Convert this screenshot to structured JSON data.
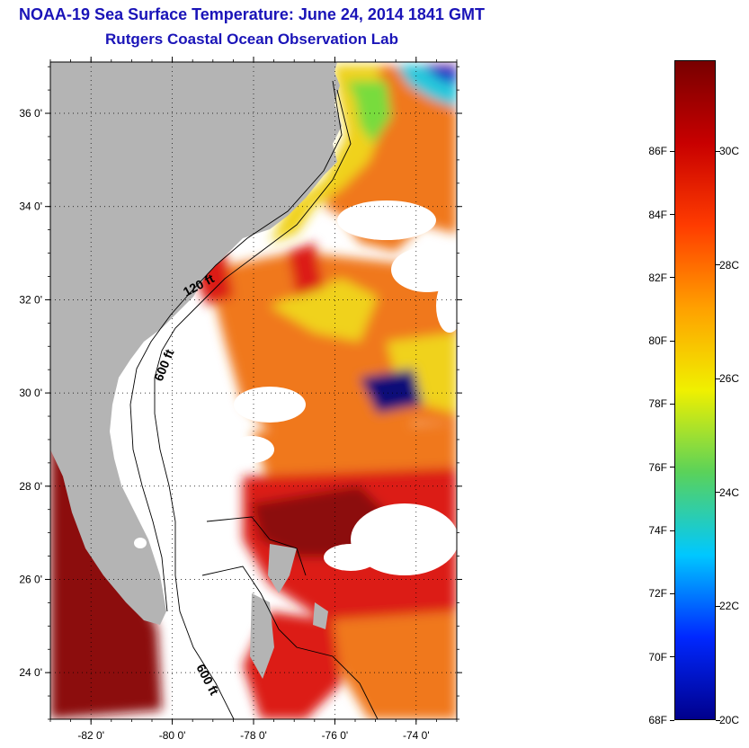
{
  "title": {
    "line1": "NOAA-19 Sea Surface Temperature:  June 24, 2014 1841 GMT",
    "line2": "Rutgers Coastal Ocean Observation Lab"
  },
  "map": {
    "lat_labels": [
      "36 0'",
      "34 0'",
      "32 0'",
      "30 0'",
      "28 0'",
      "26 0'",
      "24 0'"
    ],
    "lat_values": [
      36,
      34,
      32,
      30,
      28,
      26,
      24
    ],
    "lon_labels": [
      "-82 0'",
      "-80 0'",
      "-78 0'",
      "-76 0'",
      "-74 0'"
    ],
    "lon_values": [
      -82,
      -80,
      -78,
      -76,
      -74
    ],
    "lat_range": [
      23,
      37.1
    ],
    "lon_range": [
      -83,
      -73
    ],
    "contour_labels": [
      "120 ft",
      "600 ft",
      "600 ft"
    ],
    "land_color": "#b4b4b4",
    "colors": {
      "hot": "#8c0a0a",
      "red": "#dc1e14",
      "orange": "#f0781e",
      "yellow": "#f0d21e",
      "green": "#78dc3c",
      "cyan": "#28c8dc",
      "blue": "#1e3cc8",
      "navy": "#0a0a78"
    }
  },
  "colorbar": {
    "fahrenheit_labels": [
      "86F",
      "84F",
      "82F",
      "80F",
      "78F",
      "76F",
      "74F",
      "72F",
      "70F",
      "68F"
    ],
    "fahrenheit_values": [
      86,
      84,
      82,
      80,
      78,
      76,
      74,
      72,
      70,
      68
    ],
    "celsius_labels": [
      "30C",
      "28C",
      "26C",
      "24C",
      "22C",
      "20C"
    ],
    "celsius_values": [
      30,
      28,
      26,
      24,
      22,
      20
    ],
    "range_c": [
      20,
      31.6
    ],
    "stops": [
      "#00008c",
      "#0028ff",
      "#00c8ff",
      "#5ad25a",
      "#f0f000",
      "#ffa000",
      "#ff3c00",
      "#c80000",
      "#780000"
    ]
  }
}
